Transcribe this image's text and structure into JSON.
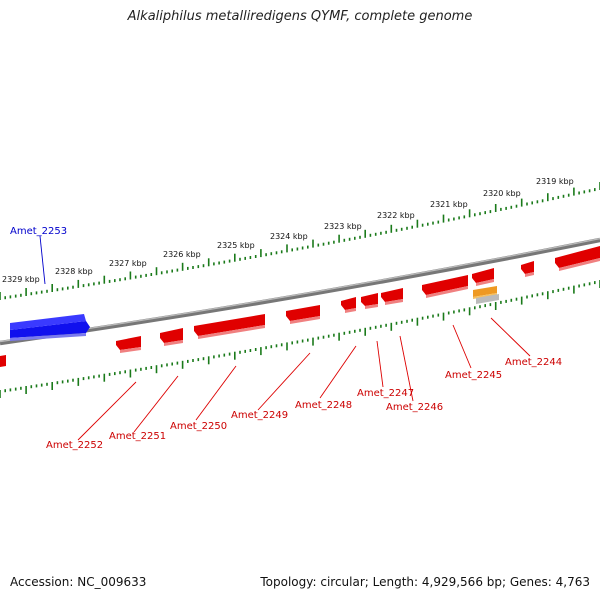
{
  "title": "Alkaliphilus metalliredigens QYMF, complete genome",
  "accession": "Accession: NC_009633",
  "topology": "Topology: circular; Length: 4,929,566 bp; Genes: 4,763",
  "colors": {
    "backbone": "#888888",
    "forward_gene": "#0000ff",
    "reverse_gene": "#ff0000",
    "ticks": "#1a7a1a",
    "orange_feature": "#ee9922",
    "gray_feature": "#bbbbbb"
  },
  "kbp_labels": [
    "2329 kbp",
    "2328 kbp",
    "2327 kbp",
    "2326 kbp",
    "2325 kbp",
    "2324 kbp",
    "2323 kbp",
    "2322 kbp",
    "2321 kbp",
    "2320 kbp",
    "2319 kbp"
  ],
  "gene_labels": [
    {
      "text": "Amet_2253",
      "strand": "forward"
    },
    {
      "text": "Amet_2252",
      "strand": "reverse"
    },
    {
      "text": "Amet_2251",
      "strand": "reverse"
    },
    {
      "text": "Amet_2250",
      "strand": "reverse"
    },
    {
      "text": "Amet_2249",
      "strand": "reverse"
    },
    {
      "text": "Amet_2248",
      "strand": "reverse"
    },
    {
      "text": "Amet_2247",
      "strand": "reverse"
    },
    {
      "text": "Amet_2246",
      "strand": "reverse"
    },
    {
      "text": "Amet_2245",
      "strand": "reverse"
    },
    {
      "text": "Amet_2244",
      "strand": "reverse"
    }
  ]
}
